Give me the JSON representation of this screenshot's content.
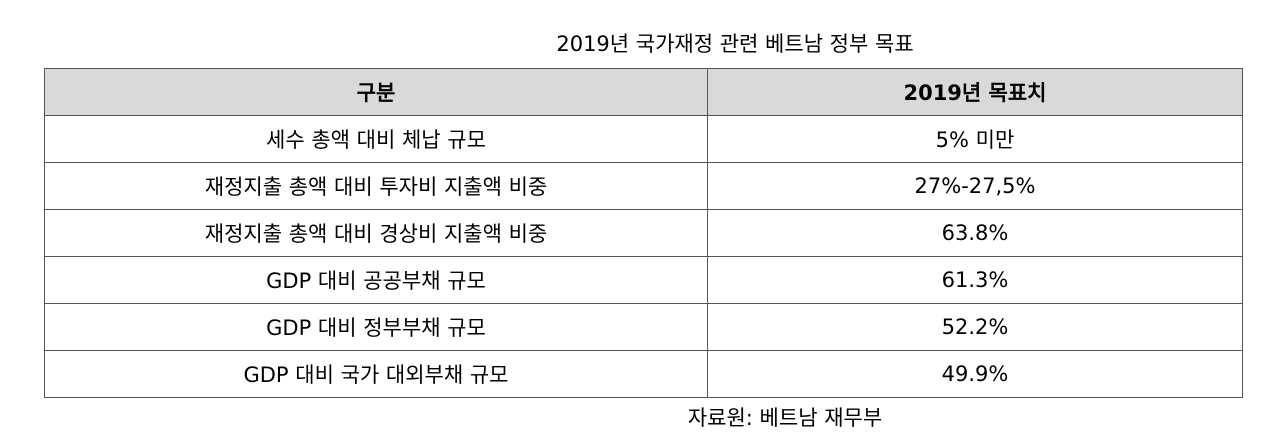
{
  "title": "2019년 국가재정 관련 베트남 정부 목표",
  "table": {
    "headers": [
      "구분",
      "2019년 목표치"
    ],
    "rows": [
      [
        "세수 총액 대비 체납 규모",
        "5% 미만"
      ],
      [
        "재정지출 총액 대비 투자비 지출액 비중",
        "27%-27,5%"
      ],
      [
        "재정지출 총액 대비 경상비 지출액 비중",
        "63.8%"
      ],
      [
        "GDP 대비 공공부채 규모",
        "61.3%"
      ],
      [
        "GDP 대비 정부부채 규모",
        "52.2%"
      ],
      [
        "GDP 대비 국가 대외부채 규모",
        "49.9%"
      ]
    ]
  },
  "source": "자료원: 베트남 재무부",
  "colors": {
    "header_bg": "#d9d9d9"
  }
}
